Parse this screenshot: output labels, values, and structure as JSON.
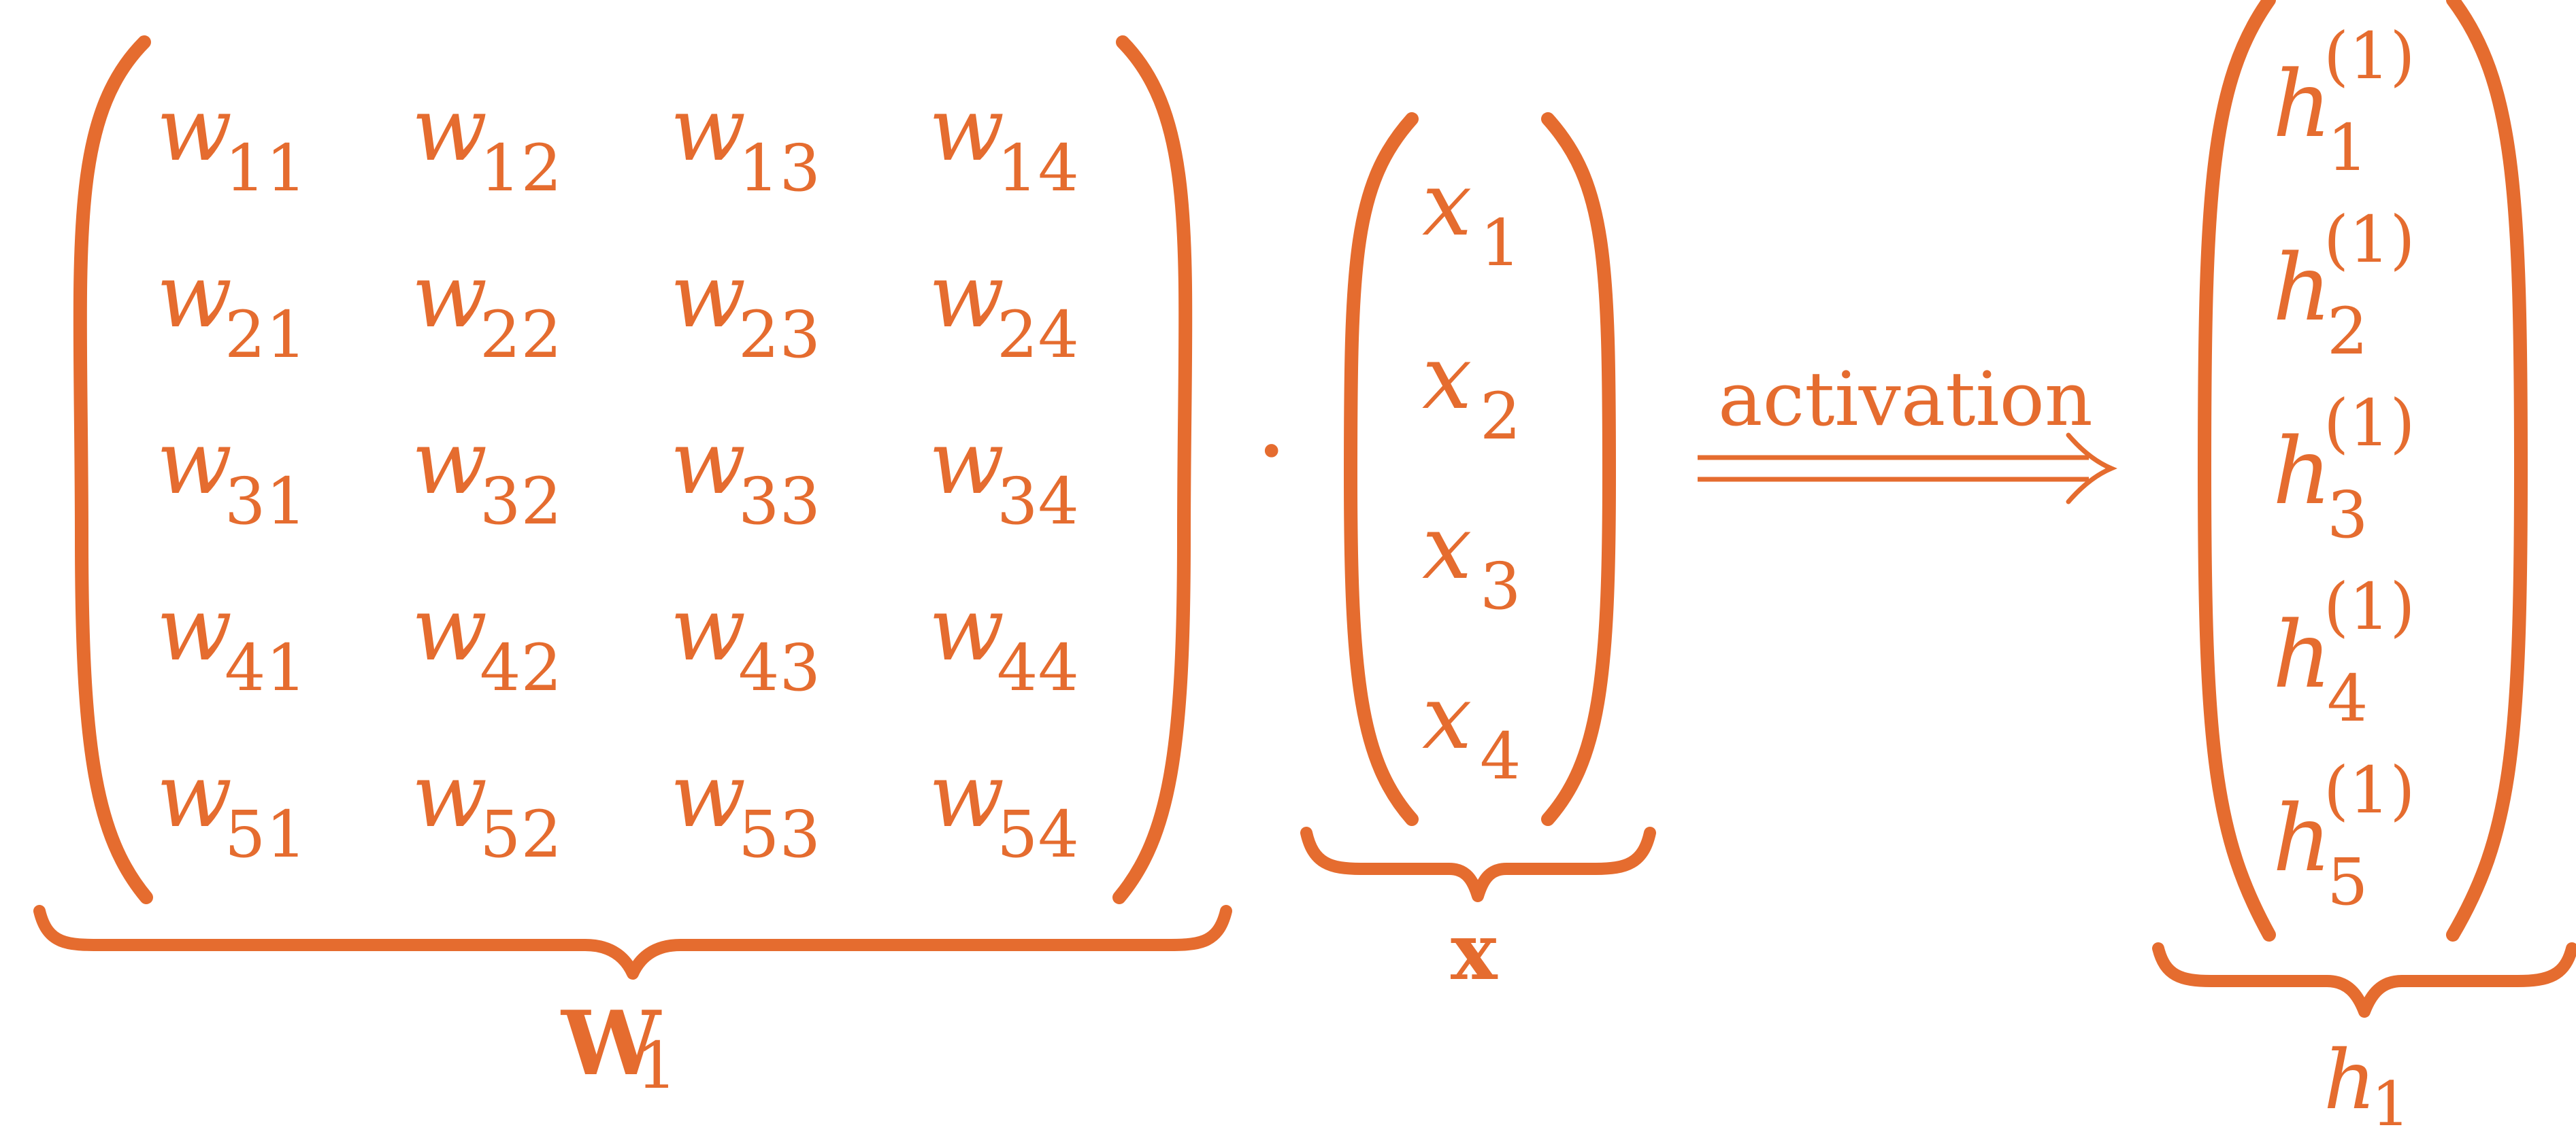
{
  "color": "#E56C2F",
  "matrix_w": {
    "rows": [
      [
        {
          "base": "w",
          "sub": "11"
        },
        {
          "base": "w",
          "sub": "12"
        },
        {
          "base": "w",
          "sub": "13"
        },
        {
          "base": "w",
          "sub": "14"
        }
      ],
      [
        {
          "base": "w",
          "sub": "21"
        },
        {
          "base": "w",
          "sub": "22"
        },
        {
          "base": "w",
          "sub": "23"
        },
        {
          "base": "w",
          "sub": "24"
        }
      ],
      [
        {
          "base": "w",
          "sub": "31"
        },
        {
          "base": "w",
          "sub": "32"
        },
        {
          "base": "w",
          "sub": "33"
        },
        {
          "base": "w",
          "sub": "34"
        }
      ],
      [
        {
          "base": "w",
          "sub": "41"
        },
        {
          "base": "w",
          "sub": "42"
        },
        {
          "base": "w",
          "sub": "43"
        },
        {
          "base": "w",
          "sub": "44"
        }
      ],
      [
        {
          "base": "w",
          "sub": "51"
        },
        {
          "base": "w",
          "sub": "52"
        },
        {
          "base": "w",
          "sub": "53"
        },
        {
          "base": "w",
          "sub": "54"
        }
      ]
    ],
    "label": {
      "base": "W",
      "sub": "1"
    }
  },
  "operator": "·",
  "vector_x": {
    "entries": [
      {
        "base": "x",
        "sub": "1"
      },
      {
        "base": "x",
        "sub": "2"
      },
      {
        "base": "x",
        "sub": "3"
      },
      {
        "base": "x",
        "sub": "4"
      }
    ],
    "label": "x"
  },
  "arrow_label": "activation",
  "vector_h": {
    "entries": [
      {
        "base": "h",
        "sub": "1",
        "sup": "(1)"
      },
      {
        "base": "h",
        "sub": "2",
        "sup": "(1)"
      },
      {
        "base": "h",
        "sub": "3",
        "sup": "(1)"
      },
      {
        "base": "h",
        "sub": "4",
        "sup": "(1)"
      },
      {
        "base": "h",
        "sub": "5",
        "sup": "(1)"
      }
    ],
    "label": {
      "base": "h",
      "sub": "1"
    }
  }
}
